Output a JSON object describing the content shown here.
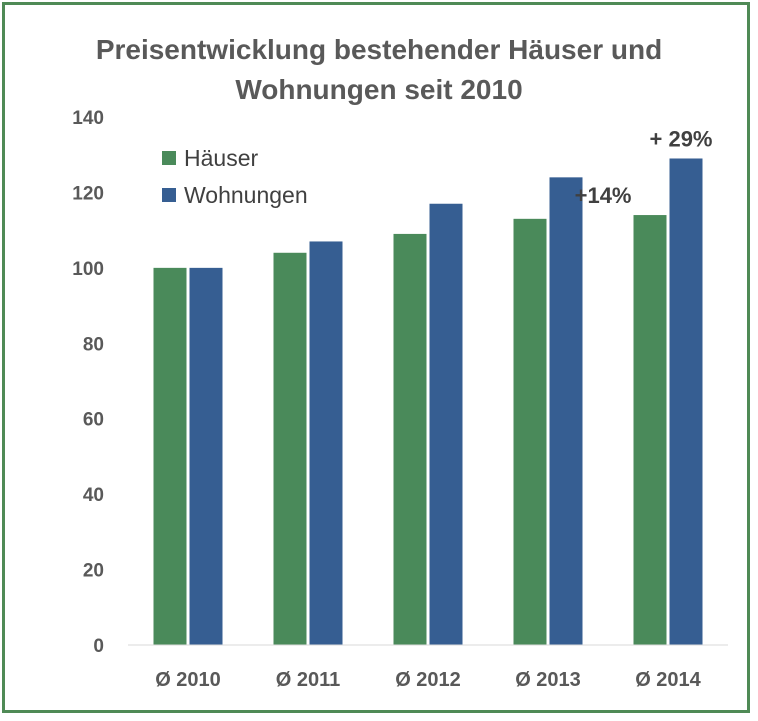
{
  "chart_data": {
    "type": "bar",
    "title_lines": [
      "Preisentwicklung bestehender Häuser und",
      "Wohnungen seit 2010"
    ],
    "categories": [
      "Ø 2010",
      "Ø 2011",
      "Ø 2012",
      "Ø 2013",
      "Ø 2014"
    ],
    "series": [
      {
        "name": "Häuser",
        "color": "#4a8a5a",
        "values": [
          100,
          104,
          109,
          113,
          114
        ]
      },
      {
        "name": "Wohnungen",
        "color": "#365e92",
        "values": [
          100,
          107,
          117,
          124,
          129
        ]
      }
    ],
    "ylim": [
      0,
      140
    ],
    "yticks": [
      0,
      20,
      40,
      60,
      80,
      100,
      120,
      140
    ],
    "grid": false,
    "legend_position": "top-left",
    "annotations": [
      {
        "text": "+14%",
        "series": "Häuser",
        "category": "Ø 2014"
      },
      {
        "text": "+ 29%",
        "series": "Wohnungen",
        "category": "Ø 2014"
      }
    ]
  },
  "colors": {
    "frame": "#4f8a56"
  }
}
